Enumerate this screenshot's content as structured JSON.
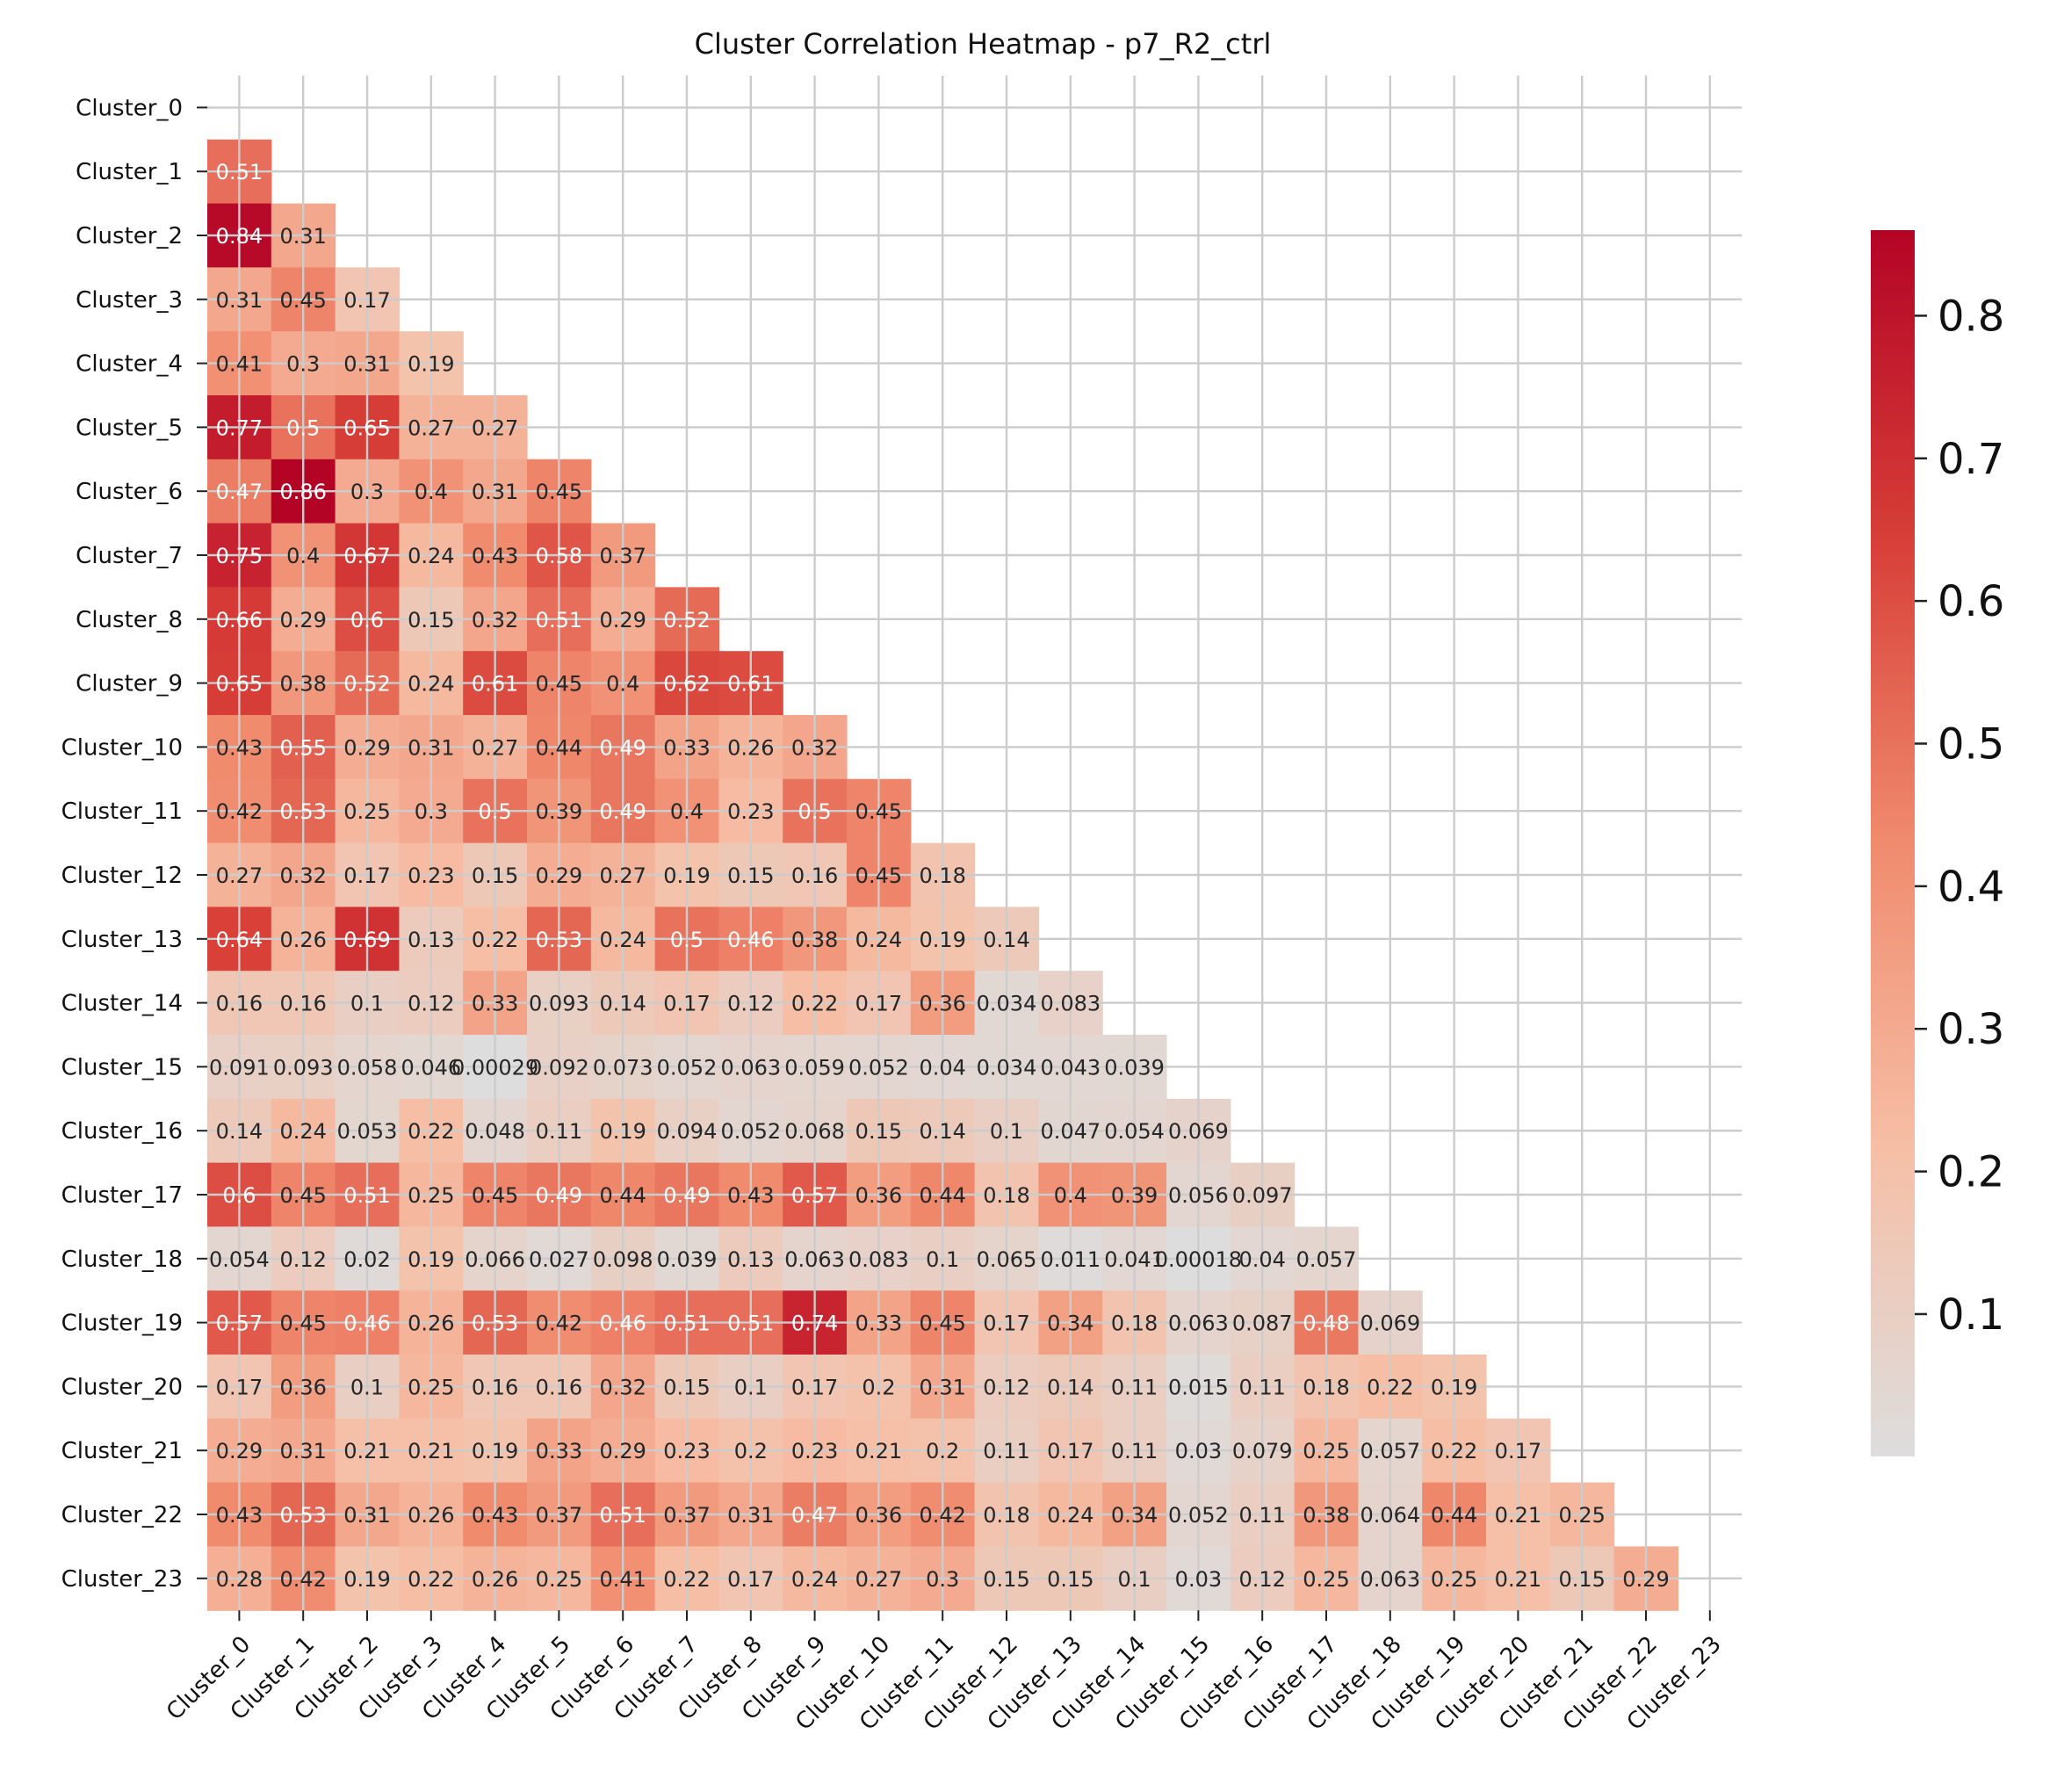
{
  "chart_data": {
    "type": "heatmap",
    "title": "Cluster Correlation Heatmap - p7_R2_ctrl",
    "xlabel": "",
    "ylabel": "",
    "labels": [
      "Cluster_0",
      "Cluster_1",
      "Cluster_2",
      "Cluster_3",
      "Cluster_4",
      "Cluster_5",
      "Cluster_6",
      "Cluster_7",
      "Cluster_8",
      "Cluster_9",
      "Cluster_10",
      "Cluster_11",
      "Cluster_12",
      "Cluster_13",
      "Cluster_14",
      "Cluster_15",
      "Cluster_16",
      "Cluster_17",
      "Cluster_18",
      "Cluster_19",
      "Cluster_20",
      "Cluster_21",
      "Cluster_22",
      "Cluster_23"
    ],
    "mask": "upper triangle including diagonal",
    "grid": true,
    "colormap": [
      "#dddddd",
      "#f6bfa6",
      "#f08b6e",
      "#d73e37",
      "#b40426"
    ],
    "vmin": 0.0002,
    "vmax": 0.86,
    "colorbar_ticks": [
      0.1,
      0.2,
      0.3,
      0.4,
      0.5,
      0.6,
      0.7,
      0.8
    ],
    "colorbar_position": "right",
    "cell_labels": [
      [],
      [
        "0.51"
      ],
      [
        "0.84",
        "0.31"
      ],
      [
        "0.31",
        "0.45",
        "0.17"
      ],
      [
        "0.41",
        "0.3",
        "0.31",
        "0.19"
      ],
      [
        "0.77",
        "0.5",
        "0.65",
        "0.27",
        "0.27"
      ],
      [
        "0.47",
        "0.86",
        "0.3",
        "0.4",
        "0.31",
        "0.45"
      ],
      [
        "0.75",
        "0.4",
        "0.67",
        "0.24",
        "0.43",
        "0.58",
        "0.37"
      ],
      [
        "0.66",
        "0.29",
        "0.6",
        "0.15",
        "0.32",
        "0.51",
        "0.29",
        "0.52"
      ],
      [
        "0.65",
        "0.38",
        "0.52",
        "0.24",
        "0.61",
        "0.45",
        "0.4",
        "0.62",
        "0.61"
      ],
      [
        "0.43",
        "0.55",
        "0.29",
        "0.31",
        "0.27",
        "0.44",
        "0.49",
        "0.33",
        "0.26",
        "0.32"
      ],
      [
        "0.42",
        "0.53",
        "0.25",
        "0.3",
        "0.5",
        "0.39",
        "0.49",
        "0.4",
        "0.23",
        "0.5",
        "0.45"
      ],
      [
        "0.27",
        "0.32",
        "0.17",
        "0.23",
        "0.15",
        "0.29",
        "0.27",
        "0.19",
        "0.15",
        "0.16",
        "0.45",
        "0.18"
      ],
      [
        "0.64",
        "0.26",
        "0.69",
        "0.13",
        "0.22",
        "0.53",
        "0.24",
        "0.5",
        "0.46",
        "0.38",
        "0.24",
        "0.19",
        "0.14"
      ],
      [
        "0.16",
        "0.16",
        "0.1",
        "0.12",
        "0.33",
        "0.093",
        "0.14",
        "0.17",
        "0.12",
        "0.22",
        "0.17",
        "0.36",
        "0.034",
        "0.083"
      ],
      [
        "0.091",
        "0.093",
        "0.058",
        "0.046",
        "0.00029",
        "0.092",
        "0.073",
        "0.052",
        "0.063",
        "0.059",
        "0.052",
        "0.04",
        "0.034",
        "0.043",
        "0.039"
      ],
      [
        "0.14",
        "0.24",
        "0.053",
        "0.22",
        "0.048",
        "0.11",
        "0.19",
        "0.094",
        "0.052",
        "0.068",
        "0.15",
        "0.14",
        "0.1",
        "0.047",
        "0.054",
        "0.069"
      ],
      [
        "0.6",
        "0.45",
        "0.51",
        "0.25",
        "0.45",
        "0.49",
        "0.44",
        "0.49",
        "0.43",
        "0.57",
        "0.36",
        "0.44",
        "0.18",
        "0.4",
        "0.39",
        "0.056",
        "0.097"
      ],
      [
        "0.054",
        "0.12",
        "0.02",
        "0.19",
        "0.066",
        "0.027",
        "0.098",
        "0.039",
        "0.13",
        "0.063",
        "0.083",
        "0.1",
        "0.065",
        "0.011",
        "0.041",
        "0.00018",
        "0.04",
        "0.057"
      ],
      [
        "0.57",
        "0.45",
        "0.46",
        "0.26",
        "0.53",
        "0.42",
        "0.46",
        "0.51",
        "0.51",
        "0.74",
        "0.33",
        "0.45",
        "0.17",
        "0.34",
        "0.18",
        "0.063",
        "0.087",
        "0.48",
        "0.069"
      ],
      [
        "0.17",
        "0.36",
        "0.1",
        "0.25",
        "0.16",
        "0.16",
        "0.32",
        "0.15",
        "0.1",
        "0.17",
        "0.2",
        "0.31",
        "0.12",
        "0.14",
        "0.11",
        "0.015",
        "0.11",
        "0.18",
        "0.22",
        "0.19"
      ],
      [
        "0.29",
        "0.31",
        "0.21",
        "0.21",
        "0.19",
        "0.33",
        "0.29",
        "0.23",
        "0.2",
        "0.23",
        "0.21",
        "0.2",
        "0.11",
        "0.17",
        "0.11",
        "0.03",
        "0.079",
        "0.25",
        "0.057",
        "0.22",
        "0.17"
      ],
      [
        "0.43",
        "0.53",
        "0.31",
        "0.26",
        "0.43",
        "0.37",
        "0.51",
        "0.37",
        "0.31",
        "0.47",
        "0.36",
        "0.42",
        "0.18",
        "0.24",
        "0.34",
        "0.052",
        "0.11",
        "0.38",
        "0.064",
        "0.44",
        "0.21",
        "0.25"
      ],
      [
        "0.28",
        "0.42",
        "0.19",
        "0.22",
        "0.26",
        "0.25",
        "0.41",
        "0.22",
        "0.17",
        "0.24",
        "0.27",
        "0.3",
        "0.15",
        "0.15",
        "0.1",
        "0.03",
        "0.12",
        "0.25",
        "0.063",
        "0.25",
        "0.21",
        "0.15",
        "0.29"
      ]
    ]
  }
}
